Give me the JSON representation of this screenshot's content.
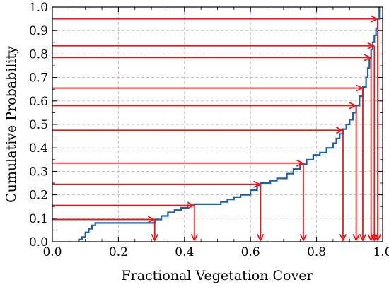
{
  "chart_data": {
    "type": "line",
    "xlabel": "Fractional Vegetation Cover",
    "ylabel": "Cumulative Probability",
    "xlim": [
      0.0,
      1.0
    ],
    "ylim": [
      0.0,
      1.0
    ],
    "x_ticks": [
      "0.0",
      "0.2",
      "0.4",
      "0.6",
      "0.8",
      "1.0"
    ],
    "x_tick_values": [
      0.0,
      0.2,
      0.4,
      0.6,
      0.8,
      1.0
    ],
    "y_ticks": [
      "0.0",
      "0.1",
      "0.2",
      "0.3",
      "0.4",
      "0.5",
      "0.6",
      "0.7",
      "0.8",
      "0.9",
      "1.0"
    ],
    "y_tick_values": [
      0.0,
      0.1,
      0.2,
      0.3,
      0.4,
      0.5,
      0.6,
      0.7,
      0.8,
      0.9,
      1.0
    ],
    "grid": true,
    "series": [
      {
        "kind": "step",
        "color": "#1f5fa6",
        "x": [
          0.08,
          0.09,
          0.1,
          0.11,
          0.12,
          0.13,
          0.31,
          0.33,
          0.35,
          0.37,
          0.39,
          0.41,
          0.43,
          0.51,
          0.53,
          0.55,
          0.57,
          0.6,
          0.62,
          0.63,
          0.66,
          0.68,
          0.71,
          0.73,
          0.75,
          0.77,
          0.79,
          0.81,
          0.83,
          0.85,
          0.86,
          0.87,
          0.88,
          0.89,
          0.9,
          0.91,
          0.92,
          0.93,
          0.94,
          0.95,
          0.955,
          0.96,
          0.965,
          0.97,
          0.975,
          0.98,
          0.985,
          0.99
        ],
        "y": [
          0.01,
          0.02,
          0.04,
          0.055,
          0.07,
          0.08,
          0.095,
          0.11,
          0.125,
          0.135,
          0.145,
          0.155,
          0.16,
          0.17,
          0.18,
          0.19,
          0.2,
          0.22,
          0.24,
          0.25,
          0.26,
          0.27,
          0.29,
          0.31,
          0.33,
          0.35,
          0.37,
          0.38,
          0.4,
          0.42,
          0.44,
          0.46,
          0.48,
          0.5,
          0.52,
          0.55,
          0.58,
          0.62,
          0.66,
          0.7,
          0.74,
          0.78,
          0.82,
          0.85,
          0.88,
          0.91,
          0.95,
          1.0
        ]
      }
    ],
    "annotations": {
      "arrow_color": "#e31a1c",
      "arrows": [
        {
          "y": 0.095,
          "x": 0.31
        },
        {
          "y": 0.155,
          "x": 0.43
        },
        {
          "y": 0.245,
          "x": 0.63
        },
        {
          "y": 0.335,
          "x": 0.76
        },
        {
          "y": 0.475,
          "x": 0.88
        },
        {
          "y": 0.58,
          "x": 0.92
        },
        {
          "y": 0.655,
          "x": 0.94
        },
        {
          "y": 0.785,
          "x": 0.965
        },
        {
          "y": 0.835,
          "x": 0.975
        },
        {
          "y": 0.95,
          "x": 0.985
        }
      ]
    }
  }
}
